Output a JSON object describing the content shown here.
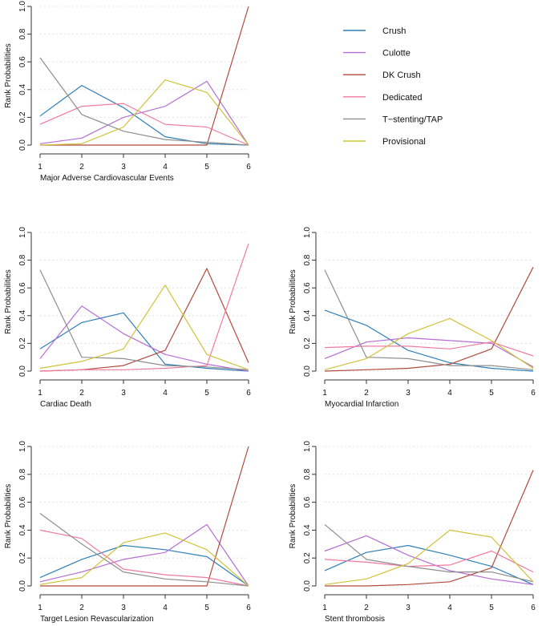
{
  "legend": [
    {
      "name": "Crush",
      "color": "#2e7fb8"
    },
    {
      "name": "Culotte",
      "color": "#b56ed3"
    },
    {
      "name": "DK Crush",
      "color": "#b24a3c"
    },
    {
      "name": "Dedicated",
      "color": "#f07aa0"
    },
    {
      "name": "T−stenting/TAP",
      "color": "#8e8e8e"
    },
    {
      "name": "Provisional",
      "color": "#cfc33a"
    }
  ],
  "chart_data": [
    {
      "type": "line",
      "title": "Major Adverse Cardiovascular Events",
      "xlabel": "Major Adverse Cardiovascular Events",
      "ylabel": "Rank Probabilities",
      "x": [
        1,
        2,
        3,
        4,
        5,
        6
      ],
      "xticks": [
        "1",
        "2",
        "3",
        "4",
        "5",
        "6"
      ],
      "yticks": [
        "0.0",
        "0.2",
        "0.4",
        "0.6",
        "0.8",
        "1.0"
      ],
      "ylim": [
        0,
        1
      ],
      "series": [
        {
          "name": "Crush",
          "values": [
            0.21,
            0.43,
            0.27,
            0.06,
            0.01,
            0.0
          ]
        },
        {
          "name": "Culotte",
          "values": [
            0.01,
            0.05,
            0.2,
            0.28,
            0.46,
            0.0
          ]
        },
        {
          "name": "DK Crush",
          "values": [
            0.0,
            0.0,
            0.0,
            0.0,
            0.0,
            1.0
          ]
        },
        {
          "name": "Dedicated",
          "values": [
            0.15,
            0.28,
            0.3,
            0.15,
            0.13,
            0.0
          ]
        },
        {
          "name": "T−stenting/TAP",
          "values": [
            0.63,
            0.22,
            0.1,
            0.04,
            0.02,
            0.0
          ]
        },
        {
          "name": "Provisional",
          "values": [
            0.0,
            0.01,
            0.13,
            0.47,
            0.38,
            0.0
          ]
        }
      ]
    },
    {
      "type": "line",
      "title": "Cardiac Death",
      "xlabel": "Cardiac Death",
      "ylabel": "Rank Probabilities",
      "x": [
        1,
        2,
        3,
        4,
        5,
        6
      ],
      "xticks": [
        "1",
        "2",
        "3",
        "4",
        "5",
        "6"
      ],
      "yticks": [
        "0.0",
        "0.2",
        "0.4",
        "0.6",
        "0.8",
        "1.0"
      ],
      "ylim": [
        0,
        1
      ],
      "series": [
        {
          "name": "Crush",
          "values": [
            0.16,
            0.35,
            0.42,
            0.05,
            0.02,
            0.0
          ]
        },
        {
          "name": "Culotte",
          "values": [
            0.09,
            0.47,
            0.27,
            0.12,
            0.05,
            0.0
          ]
        },
        {
          "name": "DK Crush",
          "values": [
            0.0,
            0.01,
            0.04,
            0.15,
            0.74,
            0.06
          ]
        },
        {
          "name": "Dedicated",
          "values": [
            0.0,
            0.01,
            0.01,
            0.02,
            0.04,
            0.92
          ]
        },
        {
          "name": "T−stenting/TAP",
          "values": [
            0.73,
            0.1,
            0.09,
            0.04,
            0.03,
            0.01
          ]
        },
        {
          "name": "Provisional",
          "values": [
            0.02,
            0.07,
            0.16,
            0.62,
            0.12,
            0.01
          ]
        }
      ]
    },
    {
      "type": "line",
      "title": "Myocardial Infarction",
      "xlabel": "Myocardial Infarction",
      "ylabel": "Rank Probabilities",
      "x": [
        1,
        2,
        3,
        4,
        5,
        6
      ],
      "xticks": [
        "1",
        "2",
        "3",
        "4",
        "5",
        "6"
      ],
      "yticks": [
        "0.0",
        "0.2",
        "0.4",
        "0.6",
        "0.8",
        "1.0"
      ],
      "ylim": [
        0,
        1
      ],
      "series": [
        {
          "name": "Crush",
          "values": [
            0.44,
            0.33,
            0.15,
            0.06,
            0.02,
            0.0
          ]
        },
        {
          "name": "Culotte",
          "values": [
            0.09,
            0.21,
            0.24,
            0.22,
            0.2,
            0.03
          ]
        },
        {
          "name": "DK Crush",
          "values": [
            0.0,
            0.01,
            0.02,
            0.05,
            0.16,
            0.75
          ]
        },
        {
          "name": "Dedicated",
          "values": [
            0.17,
            0.18,
            0.18,
            0.16,
            0.21,
            0.11
          ]
        },
        {
          "name": "T−stenting/TAP",
          "values": [
            0.73,
            0.1,
            0.09,
            0.04,
            0.04,
            0.01
          ]
        },
        {
          "name": "Provisional",
          "values": [
            0.01,
            0.09,
            0.27,
            0.38,
            0.22,
            0.02
          ]
        }
      ]
    },
    {
      "type": "line",
      "title": "Target Lesion Revascularization",
      "xlabel": "Target Lesion Revascularization",
      "ylabel": "Rank Probabilities",
      "x": [
        1,
        2,
        3,
        4,
        5,
        6
      ],
      "xticks": [
        "1",
        "2",
        "3",
        "4",
        "5",
        "6"
      ],
      "yticks": [
        "0.0",
        "0.2",
        "0.4",
        "0.6",
        "0.8",
        "1.0"
      ],
      "ylim": [
        0,
        1
      ],
      "series": [
        {
          "name": "Crush",
          "values": [
            0.06,
            0.19,
            0.29,
            0.26,
            0.21,
            0.0
          ]
        },
        {
          "name": "Culotte",
          "values": [
            0.03,
            0.1,
            0.19,
            0.24,
            0.44,
            0.0
          ]
        },
        {
          "name": "DK Crush",
          "values": [
            0.0,
            0.0,
            0.0,
            0.0,
            0.0,
            1.0
          ]
        },
        {
          "name": "Dedicated",
          "values": [
            0.4,
            0.34,
            0.12,
            0.08,
            0.06,
            0.0
          ]
        },
        {
          "name": "T−stenting/TAP",
          "values": [
            0.52,
            0.3,
            0.1,
            0.05,
            0.03,
            0.0
          ]
        },
        {
          "name": "Provisional",
          "values": [
            0.01,
            0.06,
            0.31,
            0.38,
            0.26,
            0.0
          ]
        }
      ]
    },
    {
      "type": "line",
      "title": "Stent thrombosis",
      "xlabel": "Stent thrombosis",
      "ylabel": "Rank Probabilities",
      "x": [
        1,
        2,
        3,
        4,
        5,
        6
      ],
      "xticks": [
        "1",
        "2",
        "3",
        "4",
        "5",
        "6"
      ],
      "yticks": [
        "0.0",
        "0.2",
        "0.4",
        "0.6",
        "0.8",
        "1.0"
      ],
      "ylim": [
        0,
        1
      ],
      "series": [
        {
          "name": "Crush",
          "values": [
            0.11,
            0.24,
            0.29,
            0.22,
            0.14,
            0.01
          ]
        },
        {
          "name": "Culotte",
          "values": [
            0.25,
            0.36,
            0.22,
            0.11,
            0.05,
            0.01
          ]
        },
        {
          "name": "DK Crush",
          "values": [
            0.0,
            0.0,
            0.01,
            0.03,
            0.13,
            0.83
          ]
        },
        {
          "name": "Dedicated",
          "values": [
            0.19,
            0.17,
            0.14,
            0.15,
            0.25,
            0.1
          ]
        },
        {
          "name": "T−stenting/TAP",
          "values": [
            0.44,
            0.19,
            0.14,
            0.1,
            0.1,
            0.03
          ]
        },
        {
          "name": "Provisional",
          "values": [
            0.01,
            0.05,
            0.16,
            0.4,
            0.35,
            0.03
          ]
        }
      ]
    }
  ]
}
